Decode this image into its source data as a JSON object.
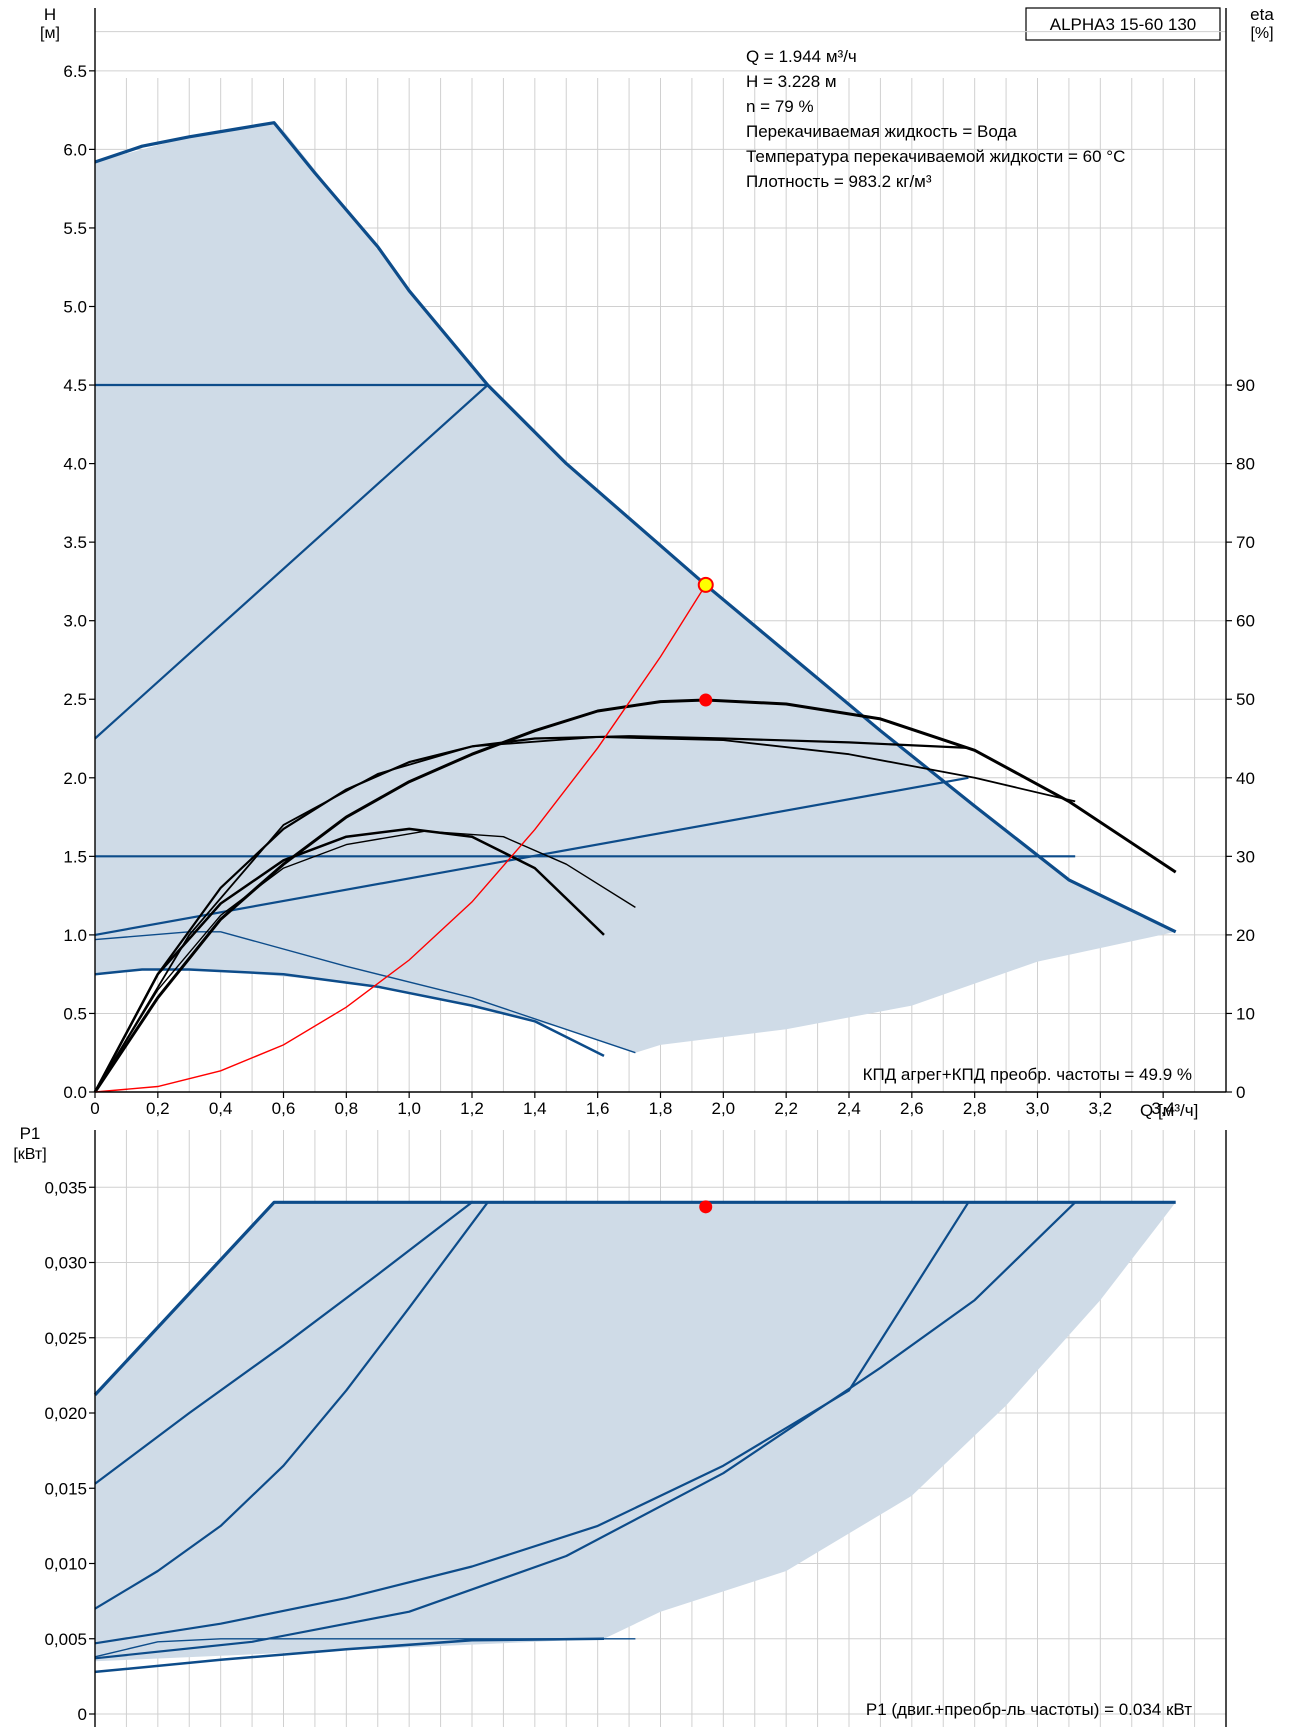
{
  "model_label": "ALPHA3 15-60 130",
  "info_lines": [
    "Q = 1.944 м³/ч",
    "H = 3.228 м",
    "n = 79 %",
    "Перекачиваемая жидкость = Вода",
    "Температура перекачиваемой жидкости = 60 °C",
    "Плотность = 983.2 кг/м³"
  ],
  "efficiency_note": "КПД агрег+КПД преобр. частоты = 49.9 %",
  "power_note": "P1 (двиг.+преобр-ль частоты) = 0.034 кВт",
  "colors": {
    "curve": "#0d4c8a",
    "area_fill": "#cfdbe7",
    "grid": "#d0d0d0",
    "efficiency": "#000000",
    "system_curve": "#ff0000",
    "duty_point": "#ff0000",
    "duty_ring_fill": "#ffff00"
  },
  "chart_data": [
    {
      "id": "head",
      "type": "line",
      "xlabel": "Q [м³/ч]",
      "ylabel": "H [м]",
      "y2label": "eta [%]",
      "xlim": [
        0,
        3.6
      ],
      "ylim": [
        0,
        6.9
      ],
      "y2lim": [
        0,
        100
      ],
      "grid": true,
      "x_ticks": [
        "0",
        "0,2",
        "0,4",
        "0,6",
        "0,8",
        "1,0",
        "1,2",
        "1,4",
        "1,6",
        "1,8",
        "2,0",
        "2,2",
        "2,4",
        "2,6",
        "2,8",
        "3,0",
        "3,2",
        "3,4"
      ],
      "y_ticks": [
        "0.0",
        "0.5",
        "1.0",
        "1.5",
        "2.0",
        "2.5",
        "3.0",
        "3.5",
        "4.0",
        "4.5",
        "5.0",
        "5.5",
        "6.0",
        "6.5"
      ],
      "y2_ticks": [
        "0",
        "10",
        "20",
        "30",
        "40",
        "50",
        "60",
        "70",
        "80",
        "90"
      ],
      "operating_area": [
        [
          0,
          5.92
        ],
        [
          0.3,
          6.08
        ],
        [
          0.57,
          6.17
        ],
        [
          0.6,
          6.12
        ],
        [
          0.8,
          5.62
        ],
        [
          1.0,
          5.1
        ],
        [
          1.25,
          4.5
        ],
        [
          1.5,
          4.0
        ],
        [
          1.8,
          3.47
        ],
        [
          1.944,
          3.228
        ],
        [
          2.2,
          2.8
        ],
        [
          2.5,
          2.3
        ],
        [
          2.8,
          1.82
        ],
        [
          3.1,
          1.35
        ],
        [
          3.44,
          1.02
        ],
        [
          3.0,
          0.83
        ],
        [
          2.6,
          0.55
        ],
        [
          2.2,
          0.4
        ],
        [
          1.8,
          0.3
        ],
        [
          1.72,
          0.25
        ],
        [
          1.5,
          0.4
        ],
        [
          1.2,
          0.55
        ],
        [
          0.8,
          0.7
        ],
        [
          0.4,
          0.77
        ],
        [
          0.2,
          0.78
        ],
        [
          0,
          0.76
        ]
      ],
      "pump_curves": [
        {
          "name": "max",
          "points": [
            [
              0,
              5.92
            ],
            [
              0.15,
              6.02
            ],
            [
              0.3,
              6.08
            ],
            [
              0.45,
              6.13
            ],
            [
              0.57,
              6.17
            ],
            [
              0.7,
              5.85
            ],
            [
              0.9,
              5.38
            ],
            [
              1.0,
              5.1
            ],
            [
              1.25,
              4.5
            ],
            [
              1.5,
              4.0
            ],
            [
              1.944,
              3.228
            ],
            [
              2.2,
              2.8
            ],
            [
              2.5,
              2.3
            ],
            [
              2.8,
              1.82
            ],
            [
              3.1,
              1.35
            ],
            [
              3.44,
              1.02
            ]
          ],
          "width": 3.2
        },
        {
          "name": "cp_high",
          "points": [
            [
              0,
              4.5
            ],
            [
              1.25,
              4.5
            ]
          ],
          "width": 2.2
        },
        {
          "name": "pp_high",
          "points": [
            [
              0,
              2.25
            ],
            [
              1.25,
              4.5
            ]
          ],
          "width": 2.2
        },
        {
          "name": "cp_low",
          "points": [
            [
              0,
              1.5
            ],
            [
              3.12,
              1.5
            ]
          ],
          "width": 2.2
        },
        {
          "name": "pp_low",
          "points": [
            [
              0,
              1.0
            ],
            [
              2.78,
              2.0
            ]
          ],
          "width": 2.2
        },
        {
          "name": "min_a",
          "points": [
            [
              0,
              0.97
            ],
            [
              0.3,
              1.02
            ],
            [
              0.4,
              1.02
            ],
            [
              0.8,
              0.8
            ],
            [
              1.2,
              0.6
            ],
            [
              1.72,
              0.25
            ]
          ],
          "width": 1.4
        },
        {
          "name": "min_b",
          "points": [
            [
              0,
              0.75
            ],
            [
              0.15,
              0.78
            ],
            [
              0.3,
              0.78
            ],
            [
              0.6,
              0.75
            ],
            [
              0.9,
              0.67
            ],
            [
              1.2,
              0.55
            ],
            [
              1.4,
              0.45
            ],
            [
              1.62,
              0.23
            ]
          ],
          "width": 2.5
        }
      ],
      "efficiency_curves": [
        {
          "points": [
            [
              0,
              0
            ],
            [
              0.2,
              12
            ],
            [
              0.4,
              22
            ],
            [
              0.6,
              29
            ],
            [
              0.8,
              35
            ],
            [
              1.0,
              39.5
            ],
            [
              1.2,
              43
            ],
            [
              1.4,
              46
            ],
            [
              1.6,
              48.5
            ],
            [
              1.8,
              49.7
            ],
            [
              1.944,
              49.9
            ],
            [
              2.2,
              49.4
            ],
            [
              2.5,
              47.5
            ],
            [
              2.8,
              43.5
            ],
            [
              3.1,
              37
            ],
            [
              3.44,
              28
            ]
          ],
          "width": 3.0
        },
        {
          "points": [
            [
              0,
              0
            ],
            [
              0.2,
              15
            ],
            [
              0.4,
              26
            ],
            [
              0.6,
              33.5
            ],
            [
              0.8,
              38.5
            ],
            [
              1.0,
              42
            ],
            [
              1.2,
              44
            ],
            [
              1.4,
              45
            ],
            [
              1.7,
              45.3
            ],
            [
              2.0,
              45
            ],
            [
              2.4,
              44.5
            ],
            [
              2.78,
              43.8
            ]
          ],
          "width": 2.2
        },
        {
          "points": [
            [
              0,
              0
            ],
            [
              0.3,
              20
            ],
            [
              0.6,
              34
            ],
            [
              0.9,
              40.5
            ],
            [
              1.2,
              44
            ],
            [
              1.6,
              45.2
            ],
            [
              2.0,
              44.8
            ],
            [
              2.4,
              43
            ],
            [
              2.8,
              40
            ],
            [
              3.12,
              37
            ]
          ],
          "width": 1.8
        },
        {
          "points": [
            [
              0,
              0
            ],
            [
              0.2,
              15
            ],
            [
              0.4,
              24
            ],
            [
              0.6,
              29.5
            ],
            [
              0.8,
              32.5
            ],
            [
              1.0,
              33.5
            ],
            [
              1.2,
              32.5
            ],
            [
              1.4,
              28.5
            ],
            [
              1.62,
              20
            ]
          ],
          "width": 2.5
        },
        {
          "points": [
            [
              0,
              0
            ],
            [
              0.2,
              13
            ],
            [
              0.4,
              22.5
            ],
            [
              0.6,
              28.5
            ],
            [
              0.8,
              31.5
            ],
            [
              1.05,
              33.2
            ],
            [
              1.3,
              32.5
            ],
            [
              1.5,
              29
            ],
            [
              1.72,
              23.5
            ]
          ],
          "width": 1.4
        }
      ],
      "system_curve": [
        [
          0,
          0
        ],
        [
          0.2,
          0.035
        ],
        [
          0.4,
          0.135
        ],
        [
          0.6,
          0.3
        ],
        [
          0.8,
          0.54
        ],
        [
          1.0,
          0.84
        ],
        [
          1.2,
          1.21
        ],
        [
          1.4,
          1.67
        ],
        [
          1.6,
          2.19
        ],
        [
          1.8,
          2.77
        ],
        [
          1.944,
          3.228
        ]
      ],
      "duty_point": {
        "q": 1.944,
        "h": 3.228,
        "eta": 49.9
      }
    },
    {
      "id": "power",
      "type": "line",
      "xlabel": "",
      "ylabel": "P1 [кВт]",
      "xlim": [
        0,
        3.6
      ],
      "ylim": [
        0,
        0.04
      ],
      "grid": true,
      "y_ticks": [
        "0",
        "0,005",
        "0,010",
        "0,015",
        "0,020",
        "0,025",
        "0,030",
        "0,035"
      ],
      "operating_area": [
        [
          0,
          0.0212
        ],
        [
          0.57,
          0.034
        ],
        [
          3.44,
          0.034
        ],
        [
          3.2,
          0.0275
        ],
        [
          2.9,
          0.0205
        ],
        [
          2.6,
          0.0145
        ],
        [
          2.2,
          0.0095
        ],
        [
          1.8,
          0.0068
        ],
        [
          1.62,
          0.005
        ],
        [
          0,
          0.0035
        ]
      ],
      "power_curves": [
        {
          "points": [
            [
              0,
              0.0212
            ],
            [
              0.57,
              0.034
            ],
            [
              3.44,
              0.034
            ]
          ],
          "width": 3.2
        },
        {
          "points": [
            [
              0,
              0.0153
            ],
            [
              0.3,
              0.02
            ],
            [
              0.6,
              0.0245
            ],
            [
              0.9,
              0.0292
            ],
            [
              1.2,
              0.034
            ]
          ],
          "width": 2.2
        },
        {
          "points": [
            [
              0,
              0.007
            ],
            [
              0.2,
              0.0095
            ],
            [
              0.4,
              0.0125
            ],
            [
              0.6,
              0.0165
            ],
            [
              0.8,
              0.0215
            ],
            [
              1.0,
              0.027
            ],
            [
              1.25,
              0.034
            ]
          ],
          "width": 2.2
        },
        {
          "points": [
            [
              0,
              0.0047
            ],
            [
              0.4,
              0.006
            ],
            [
              0.8,
              0.0077
            ],
            [
              1.2,
              0.0098
            ],
            [
              1.6,
              0.0125
            ],
            [
              2.0,
              0.0165
            ],
            [
              2.4,
              0.0215
            ],
            [
              2.78,
              0.034
            ]
          ],
          "width": 2.2
        },
        {
          "points": [
            [
              0,
              0.0037
            ],
            [
              0.5,
              0.0048
            ],
            [
              1.0,
              0.0068
            ],
            [
              1.5,
              0.0105
            ],
            [
              2.0,
              0.016
            ],
            [
              2.5,
              0.023
            ],
            [
              2.8,
              0.0275
            ],
            [
              3.12,
              0.034
            ]
          ],
          "width": 2.2
        },
        {
          "points": [
            [
              0,
              0.0038
            ],
            [
              0.2,
              0.0048
            ],
            [
              0.4,
              0.005
            ],
            [
              1.72,
              0.005
            ]
          ],
          "width": 1.4
        },
        {
          "points": [
            [
              0,
              0.0028
            ],
            [
              0.4,
              0.0036
            ],
            [
              0.8,
              0.0043
            ],
            [
              1.2,
              0.0049
            ],
            [
              1.62,
              0.005
            ]
          ],
          "width": 2.5
        }
      ],
      "duty_point": {
        "q": 1.944,
        "p1": 0.0337
      }
    }
  ]
}
